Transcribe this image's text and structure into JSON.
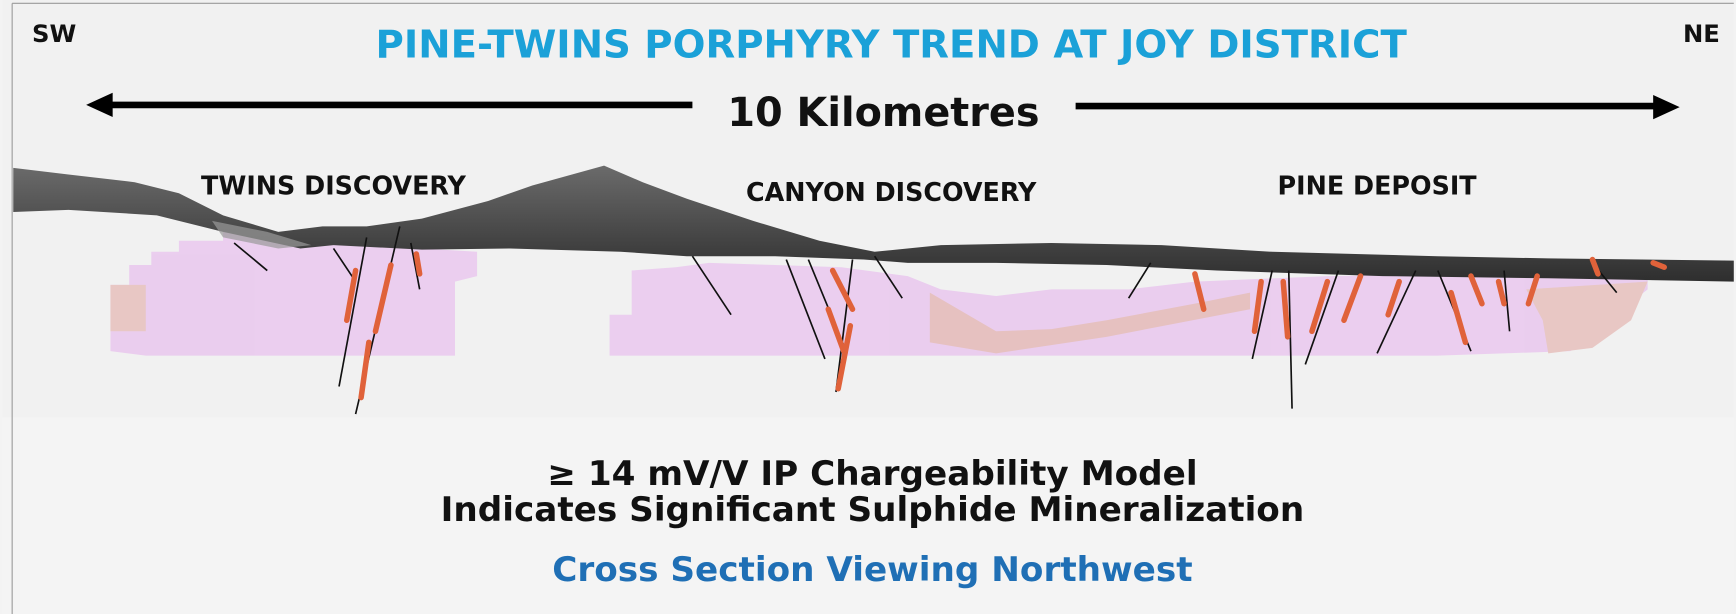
{
  "labels": {
    "sw": "SW",
    "ne": "NE"
  },
  "title": "PINE-TWINS PORPHYRY TREND AT JOY DISTRICT",
  "scale": {
    "label": "10 Kilometres"
  },
  "targets": [
    "TWINS DISCOVERY",
    "CANYON DISCOVERY",
    "PINE DEPOSIT"
  ],
  "caption": {
    "lines": [
      "≥ 14 mV/V IP Chargeability Model",
      "Indicates Significant Sulphide Mineralization"
    ],
    "subtitle": "Cross Section Viewing Northwest"
  }
}
